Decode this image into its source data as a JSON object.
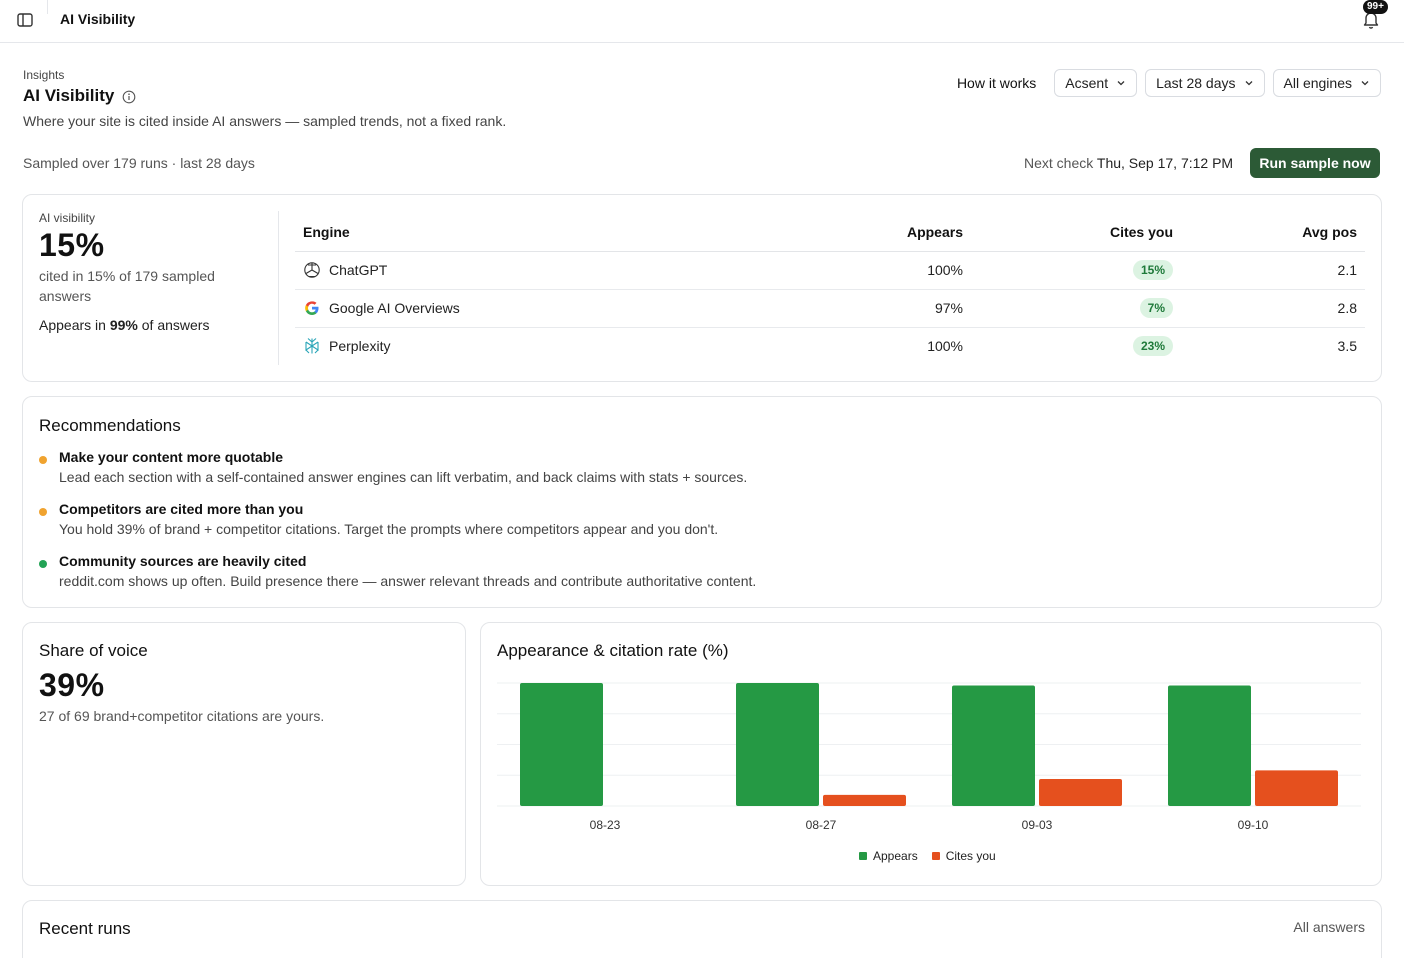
{
  "topbar": {
    "title": "AI Visibility",
    "notification_badge": "99+"
  },
  "header": {
    "breadcrumb": "Insights",
    "title": "AI Visibility",
    "subtitle": "Where your site is cited inside AI answers — sampled trends, not a fixed rank.",
    "sampled_text": "Sampled over 179 runs · last 28 days",
    "how_it_works": "How it works",
    "filters": {
      "brand": "Acsent",
      "range": "Last 28 days",
      "engines": "All engines"
    },
    "next_check_label": "Next check",
    "next_check_value": "Thu, Sep 17, 7:12 PM",
    "run_button": "Run sample now"
  },
  "visibility": {
    "label": "AI visibility",
    "value": "15%",
    "desc": "cited in 15% of 179 sampled answers",
    "appears_prefix": "Appears in",
    "appears_value": "99%",
    "appears_suffix": "of answers"
  },
  "engines": {
    "headers": {
      "engine": "Engine",
      "appears": "Appears",
      "cites": "Cites you",
      "avgpos": "Avg pos"
    },
    "rows": [
      {
        "name": "ChatGPT",
        "icon": "openai-icon",
        "appears": "100%",
        "cites": "15%",
        "avgpos": "2.1"
      },
      {
        "name": "Google AI Overviews",
        "icon": "google-icon",
        "appears": "97%",
        "cites": "7%",
        "avgpos": "2.8"
      },
      {
        "name": "Perplexity",
        "icon": "perplexity-icon",
        "appears": "100%",
        "cites": "23%",
        "avgpos": "3.5"
      }
    ]
  },
  "recommendations": {
    "title": "Recommendations",
    "items": [
      {
        "title": "Make your content more quotable",
        "body": "Lead each section with a self-contained answer engines can lift verbatim, and back claims with stats + sources.",
        "color": "#f0a32f"
      },
      {
        "title": "Competitors are cited more than you",
        "body": "You hold 39% of brand + competitor citations. Target the prompts where competitors appear and you don't.",
        "color": "#f0a32f"
      },
      {
        "title": "Community sources are heavily cited",
        "body": "reddit.com shows up often. Build presence there — answer relevant threads and contribute authoritative content.",
        "color": "#22a355"
      }
    ]
  },
  "share_of_voice": {
    "title": "Share of voice",
    "value": "39%",
    "desc": "27 of 69 brand+competitor citations are yours."
  },
  "chart_data": {
    "type": "bar",
    "title": "Appearance & citation rate (%)",
    "categories": [
      "08-23",
      "08-27",
      "09-03",
      "09-10"
    ],
    "series": [
      {
        "name": "Appears",
        "values": [
          100,
          100,
          98,
          98
        ],
        "color": "#259944"
      },
      {
        "name": "Cites you",
        "values": [
          0,
          9,
          22,
          29
        ],
        "color": "#e5501e"
      }
    ],
    "ylim": [
      0,
      100
    ],
    "grid": true,
    "legend": "bottom"
  },
  "recent_runs": {
    "title": "Recent runs",
    "link": "All answers"
  }
}
